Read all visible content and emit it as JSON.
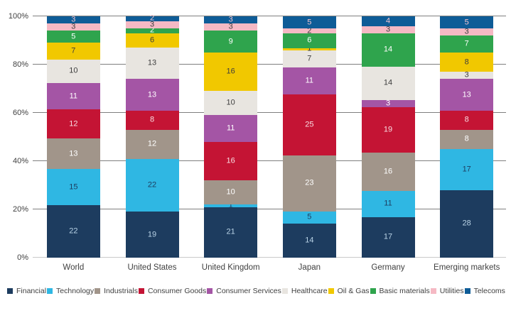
{
  "chart_data": {
    "type": "bar",
    "variant": "stacked-percent",
    "title": "",
    "xlabel": "",
    "ylabel": "",
    "ylim": [
      0,
      100
    ],
    "grid": true,
    "legend_position": "bottom",
    "y_ticks": [
      {
        "value": 0,
        "label": "0%"
      },
      {
        "value": 20,
        "label": "20%"
      },
      {
        "value": 40,
        "label": "40%"
      },
      {
        "value": 60,
        "label": "60%"
      },
      {
        "value": 80,
        "label": "80%"
      },
      {
        "value": 100,
        "label": "100%"
      }
    ],
    "categories": [
      "World",
      "United States",
      "United Kingdom",
      "Japan",
      "Germany",
      "Emerging markets"
    ],
    "series": [
      {
        "name": "Financial",
        "color": "#1d3c5f",
        "label_color": "#b9d3e6",
        "values": [
          22,
          19,
          21,
          14,
          17,
          28
        ]
      },
      {
        "name": "Technology",
        "color": "#2fb7e3",
        "label_color": "#1d3c5f",
        "values": [
          15,
          22,
          1,
          5,
          11,
          17
        ]
      },
      {
        "name": "Industrials",
        "color": "#a1958a",
        "label_color": "#ffffff",
        "values": [
          13,
          12,
          10,
          23,
          16,
          8
        ]
      },
      {
        "name": "Consumer Goods",
        "color": "#c41434",
        "label_color": "#f8dde2",
        "values": [
          12,
          8,
          16,
          25,
          19,
          8
        ]
      },
      {
        "name": "Consumer Services",
        "color": "#a455a5",
        "label_color": "#ffffff",
        "values": [
          11,
          13,
          11,
          11,
          3,
          13
        ]
      },
      {
        "name": "Healthcare",
        "color": "#e8e5e0",
        "label_color": "#3d3d3d",
        "values": [
          10,
          13,
          10,
          7,
          14,
          3
        ]
      },
      {
        "name": "Oil & Gas",
        "color": "#f1c800",
        "label_color": "#3d3d3d",
        "values": [
          7,
          6,
          16,
          1,
          0,
          8
        ]
      },
      {
        "name": "Basic materials",
        "color": "#2fa44d",
        "label_color": "#ffffff",
        "values": [
          5,
          2,
          9,
          6,
          14,
          7
        ]
      },
      {
        "name": "Utilities",
        "color": "#f5b9c4",
        "label_color": "#3d3d3d",
        "values": [
          3,
          3,
          3,
          2,
          3,
          3
        ]
      },
      {
        "name": "Telecoms",
        "color": "#0e5c97",
        "label_color": "#f2c5d0",
        "values": [
          3,
          2,
          3,
          5,
          4,
          5
        ]
      }
    ]
  }
}
